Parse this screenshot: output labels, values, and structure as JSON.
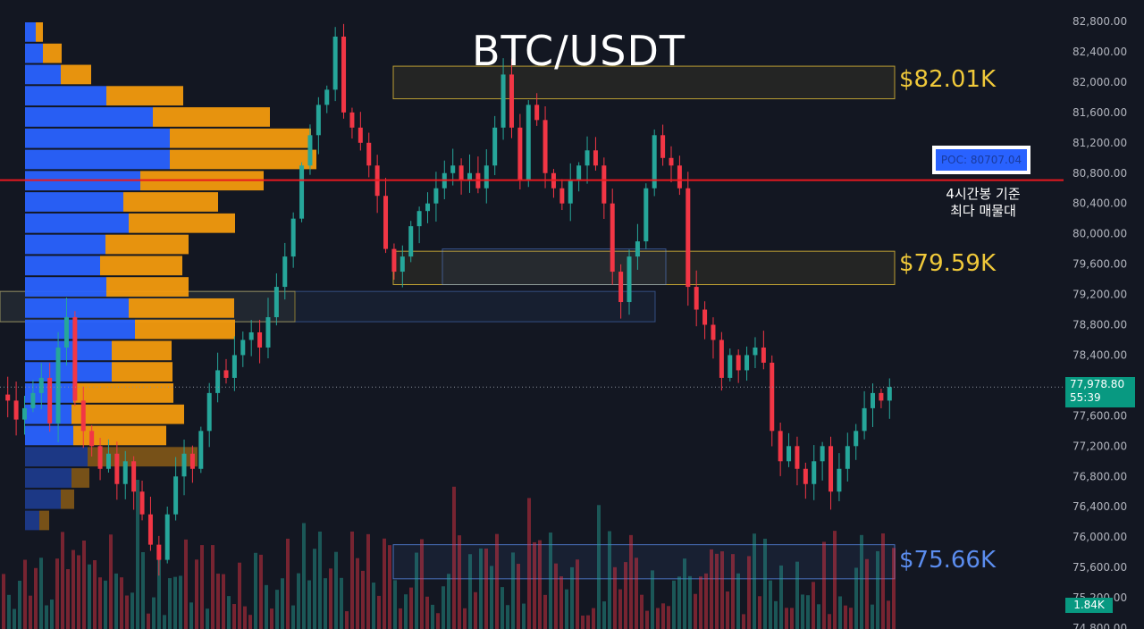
{
  "title": "BTC/USDT",
  "zones": [
    {
      "label": "$82.01K",
      "top": 82210,
      "bottom": 81780,
      "color": "#f0c93a"
    },
    {
      "label": "$79.59K",
      "top": 79770,
      "bottom": 79330,
      "color": "#f0c93a"
    },
    {
      "label": "$75.66K",
      "top": 75900,
      "bottom": 75450,
      "color": "#5b8def"
    }
  ],
  "poc": {
    "label": "POC: 80707.04",
    "value": 80707.04,
    "note_line1": "4시간봉 기준",
    "note_line2": "최다 매물대"
  },
  "current_price": {
    "value": "77,978.80",
    "countdown": "55:39"
  },
  "volume_label": "1.84K",
  "colors": {
    "up": "#26a69a",
    "down": "#f23645",
    "profile_buy": "#2962ff",
    "profile_sell": "#f29a0e",
    "poc_line": "#e8191f",
    "background": "#131722"
  },
  "chart_data": {
    "type": "candlestick",
    "title": "BTC/USDT",
    "y_axis_ticks": [
      "82,800.00",
      "82,400.00",
      "82,000.00",
      "81,600.00",
      "81,200.00",
      "80,800.00",
      "80,400.00",
      "80,000.00",
      "79,600.00",
      "79,200.00",
      "78,800.00",
      "78,400.00",
      "77,600.00",
      "77,200.00",
      "76,800.00",
      "76,400.00",
      "76,000.00",
      "75,600.00",
      "75,200.00",
      "74,800.00"
    ],
    "ylim": [
      74800,
      82800
    ],
    "grid": false,
    "ohlc_close_path": [
      77800,
      77550,
      77700,
      77900,
      78100,
      77500,
      78500,
      78900,
      77800,
      77400,
      77200,
      76900,
      77100,
      76700,
      77000,
      76600,
      76300,
      75900,
      75700,
      76300,
      76800,
      77100,
      76900,
      77400,
      77900,
      78200,
      78100,
      78400,
      78600,
      78700,
      78500,
      78900,
      79300,
      79700,
      80200,
      80900,
      81300,
      81700,
      81900,
      82600,
      81600,
      81400,
      81200,
      80900,
      80500,
      79800,
      79500,
      79700,
      80100,
      80300,
      80400,
      80600,
      80800,
      80900,
      80700,
      80800,
      80600,
      80900,
      81400,
      82100,
      81400,
      80700,
      81700,
      81500,
      80800,
      80600,
      80400,
      80700,
      80900,
      81100,
      80900,
      80400,
      79500,
      79100,
      79700,
      79900,
      80600,
      81300,
      81000,
      80900,
      80600,
      79300,
      79000,
      78800,
      78600,
      78100,
      78400,
      78200,
      78400,
      78500,
      78300,
      77400,
      77000,
      77200,
      76900,
      76700,
      77000,
      77200,
      76600,
      76900,
      77200,
      77400,
      77700,
      77900,
      77800,
      77978.8
    ],
    "volume_profile": [
      {
        "price_top": 82800,
        "price_bottom": 82520,
        "buy": 12,
        "sell": 8
      },
      {
        "price_top": 82520,
        "price_bottom": 82240,
        "buy": 20,
        "sell": 21
      },
      {
        "price_top": 82240,
        "price_bottom": 81960,
        "buy": 40,
        "sell": 34
      },
      {
        "price_top": 81960,
        "price_bottom": 81680,
        "buy": 91,
        "sell": 86
      },
      {
        "price_top": 81680,
        "price_bottom": 81400,
        "buy": 143,
        "sell": 131
      },
      {
        "price_top": 81400,
        "price_bottom": 81120,
        "buy": 162,
        "sell": 158
      },
      {
        "price_top": 81120,
        "price_bottom": 80840,
        "buy": 162,
        "sell": 164
      },
      {
        "price_top": 80840,
        "price_bottom": 80560,
        "buy": 129,
        "sell": 138
      },
      {
        "price_top": 80560,
        "price_bottom": 80280,
        "buy": 110,
        "sell": 106
      },
      {
        "price_top": 80280,
        "price_bottom": 80000,
        "buy": 116,
        "sell": 119
      },
      {
        "price_top": 80000,
        "price_bottom": 79720,
        "buy": 90,
        "sell": 93
      },
      {
        "price_top": 79720,
        "price_bottom": 79440,
        "buy": 84,
        "sell": 92
      },
      {
        "price_top": 79440,
        "price_bottom": 79160,
        "buy": 91,
        "sell": 92
      },
      {
        "price_top": 79160,
        "price_bottom": 78880,
        "buy": 116,
        "sell": 118
      },
      {
        "price_top": 78880,
        "price_bottom": 78600,
        "buy": 123,
        "sell": 112
      },
      {
        "price_top": 78600,
        "price_bottom": 78320,
        "buy": 97,
        "sell": 67
      },
      {
        "price_top": 78320,
        "price_bottom": 78040,
        "buy": 97,
        "sell": 68
      },
      {
        "price_top": 78040,
        "price_bottom": 77760,
        "buy": 54,
        "sell": 112
      },
      {
        "price_top": 77760,
        "price_bottom": 77480,
        "buy": 52,
        "sell": 126
      },
      {
        "price_top": 77480,
        "price_bottom": 77200,
        "buy": 54,
        "sell": 104
      },
      {
        "price_top": 77200,
        "price_bottom": 76920,
        "buy": 70,
        "sell": 123
      },
      {
        "price_top": 76920,
        "price_bottom": 76640,
        "buy": 52,
        "sell": 20
      },
      {
        "price_top": 76640,
        "price_bottom": 76360,
        "buy": 40,
        "sell": 15
      },
      {
        "price_top": 76360,
        "price_bottom": 76080,
        "buy": 16,
        "sell": 11
      }
    ]
  }
}
